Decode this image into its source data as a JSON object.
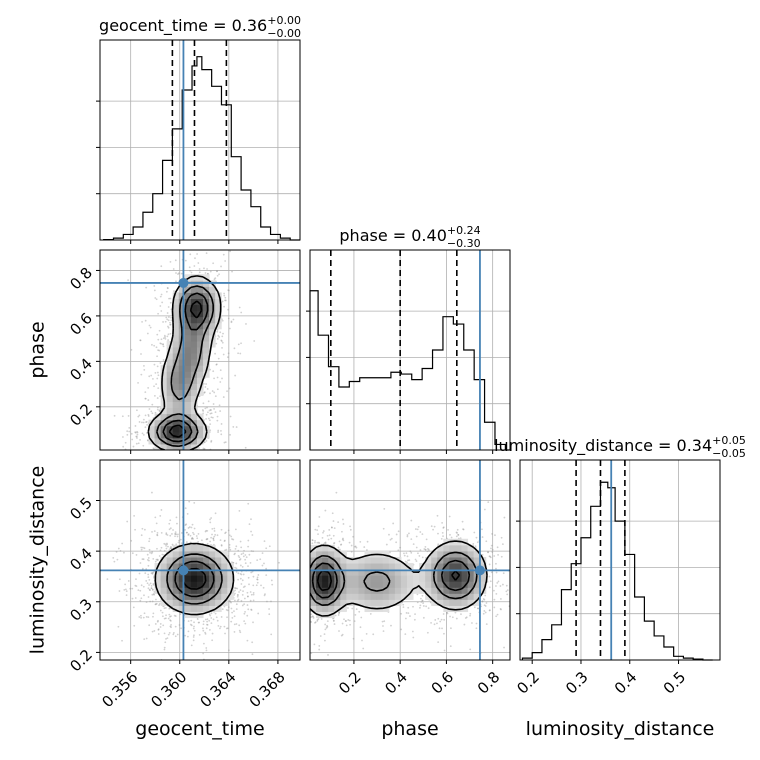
{
  "chart_data": {
    "type": "corner",
    "parameters": [
      "geocent_time",
      "phase",
      "luminosity_distance"
    ],
    "truths": {
      "geocent_time": 0.3603,
      "phase": 0.745,
      "luminosity_distance": 0.362
    },
    "truth_color": "#4682b4",
    "histogram_color": "#000000",
    "grid": true,
    "panels": {
      "geocent_time": {
        "title_main": "geocent_time = 0.36",
        "title_sup": "+0.00",
        "title_sub": "−0.00",
        "xlim": [
          0.3535,
          0.3698
        ],
        "ticks": [
          0.356,
          0.36,
          0.364,
          0.368
        ],
        "tick_labels": [
          "0.356",
          "0.360",
          "0.364",
          "0.368"
        ],
        "quantiles": [
          0.3594,
          0.3612,
          0.3638
        ],
        "hist_step": [
          [
            0.3538,
            0.002
          ],
          [
            0.3546,
            0.01
          ],
          [
            0.3554,
            0.03
          ],
          [
            0.3562,
            0.07
          ],
          [
            0.357,
            0.15
          ],
          [
            0.3578,
            0.25
          ],
          [
            0.3586,
            0.43
          ],
          [
            0.3594,
            0.6
          ],
          [
            0.3602,
            0.81
          ],
          [
            0.361,
            0.94
          ],
          [
            0.3614,
            0.99
          ],
          [
            0.3618,
            0.92
          ],
          [
            0.3626,
            0.83
          ],
          [
            0.3634,
            0.73
          ],
          [
            0.3642,
            0.45
          ],
          [
            0.365,
            0.27
          ],
          [
            0.3658,
            0.18
          ],
          [
            0.3666,
            0.07
          ],
          [
            0.3674,
            0.03
          ],
          [
            0.3682,
            0.01
          ],
          [
            0.369,
            0.0
          ]
        ],
        "xlabel": "geocent_time"
      },
      "phase": {
        "title_main": "phase = 0.40",
        "title_sup": "+0.24",
        "title_sub": "−0.30",
        "xlim": [
          0.01,
          0.875
        ],
        "ylim_2d": [
          0.01,
          0.89
        ],
        "ticks": [
          0.2,
          0.4,
          0.6,
          0.8
        ],
        "tick_labels": [
          "0.2",
          "0.4",
          "0.6",
          "0.8"
        ],
        "yticks": [
          0.2,
          0.4,
          0.6,
          0.8
        ],
        "ytick_labels": [
          "0.2",
          "0.4",
          "0.6",
          "0.8"
        ],
        "quantiles": [
          0.1,
          0.4,
          0.645
        ],
        "hist_step": [
          [
            0.01,
            0.86
          ],
          [
            0.045,
            0.62
          ],
          [
            0.09,
            0.45
          ],
          [
            0.135,
            0.34
          ],
          [
            0.18,
            0.37
          ],
          [
            0.225,
            0.39
          ],
          [
            0.27,
            0.39
          ],
          [
            0.315,
            0.39
          ],
          [
            0.36,
            0.42
          ],
          [
            0.405,
            0.41
          ],
          [
            0.45,
            0.38
          ],
          [
            0.495,
            0.44
          ],
          [
            0.54,
            0.54
          ],
          [
            0.585,
            0.72
          ],
          [
            0.63,
            0.68
          ],
          [
            0.675,
            0.54
          ],
          [
            0.72,
            0.38
          ],
          [
            0.765,
            0.15
          ],
          [
            0.81,
            0.03
          ],
          [
            0.855,
            0.0
          ]
        ],
        "xlabel": "phase",
        "ylabel": "phase"
      },
      "luminosity_distance": {
        "title_main": "luminosity_distance = 0.34",
        "title_sup": "+0.05",
        "title_sub": "−0.05",
        "xlim": [
          0.175,
          0.585
        ],
        "ylim_2d": [
          0.185,
          0.58
        ],
        "ticks": [
          0.2,
          0.3,
          0.4,
          0.5
        ],
        "tick_labels": [
          "0.2",
          "0.3",
          "0.4",
          "0.5"
        ],
        "yticks": [
          0.2,
          0.3,
          0.4,
          0.5
        ],
        "ytick_labels": [
          "0.2",
          "0.3",
          "0.4",
          "0.5"
        ],
        "quantiles": [
          0.29,
          0.34,
          0.39
        ],
        "hist_step": [
          [
            0.18,
            0.01
          ],
          [
            0.2,
            0.04
          ],
          [
            0.22,
            0.11
          ],
          [
            0.24,
            0.19
          ],
          [
            0.26,
            0.38
          ],
          [
            0.28,
            0.52
          ],
          [
            0.3,
            0.66
          ],
          [
            0.32,
            0.83
          ],
          [
            0.34,
            0.96
          ],
          [
            0.355,
            0.93
          ],
          [
            0.37,
            0.75
          ],
          [
            0.39,
            0.57
          ],
          [
            0.41,
            0.34
          ],
          [
            0.43,
            0.21
          ],
          [
            0.45,
            0.13
          ],
          [
            0.47,
            0.07
          ],
          [
            0.49,
            0.02
          ],
          [
            0.51,
            0.01
          ],
          [
            0.53,
            0.005
          ],
          [
            0.55,
            0.0
          ]
        ],
        "xlabel": "luminosity_distance",
        "ylabel": "luminosity_distance"
      }
    },
    "density_2d": {
      "phase_vs_geocent_time": {
        "x": "geocent_time",
        "y": "phase",
        "clusters": [
          {
            "x": 0.3614,
            "y": 0.64,
            "sx": 0.001,
            "sy": 0.07,
            "w": 1.0
          },
          {
            "x": 0.361,
            "y": 0.46,
            "sx": 0.0009,
            "sy": 0.09,
            "w": 0.55
          },
          {
            "x": 0.36,
            "y": 0.3,
            "sx": 0.0009,
            "sy": 0.09,
            "w": 0.55
          },
          {
            "x": 0.3598,
            "y": 0.09,
            "sx": 0.0012,
            "sy": 0.045,
            "w": 1.1
          }
        ]
      },
      "luminosity_distance_vs_geocent_time": {
        "x": "geocent_time",
        "y": "luminosity_distance",
        "clusters": [
          {
            "x": 0.3612,
            "y": 0.345,
            "sx": 0.0016,
            "sy": 0.035,
            "w": 1.0
          }
        ]
      },
      "luminosity_distance_vs_phase": {
        "x": "phase",
        "y": "luminosity_distance",
        "clusters": [
          {
            "x": 0.07,
            "y": 0.342,
            "sx": 0.05,
            "sy": 0.035,
            "w": 1.0
          },
          {
            "x": 0.3,
            "y": 0.34,
            "sx": 0.1,
            "sy": 0.035,
            "w": 0.45
          },
          {
            "x": 0.64,
            "y": 0.352,
            "sx": 0.07,
            "sy": 0.035,
            "w": 0.9
          }
        ]
      }
    }
  }
}
